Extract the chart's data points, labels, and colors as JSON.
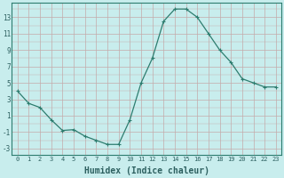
{
  "x": [
    0,
    1,
    2,
    3,
    4,
    5,
    6,
    7,
    8,
    9,
    10,
    11,
    12,
    13,
    14,
    15,
    16,
    17,
    18,
    19,
    20,
    21,
    22,
    23
  ],
  "y": [
    4,
    2.5,
    2,
    0.5,
    -0.8,
    -0.7,
    -1.5,
    -2.0,
    -2.5,
    -2.5,
    0.5,
    5,
    8,
    12.5,
    14,
    14,
    13,
    11,
    9,
    7.5,
    5.5,
    5,
    4.5,
    4.5
  ],
  "line_color": "#2d7d6f",
  "marker": "+",
  "marker_size": 3,
  "marker_edge_width": 0.8,
  "bg_color": "#c8eded",
  "grid_color_major": "#c4aaaa",
  "xlabel": "Humidex (Indice chaleur)",
  "xlabel_fontsize": 7,
  "tick_color": "#2d6060",
  "tick_fontsize": 5,
  "ylabel_ticks": [
    -3,
    -1,
    1,
    3,
    5,
    7,
    9,
    11,
    13
  ],
  "xlim": [
    -0.5,
    23.5
  ],
  "ylim": [
    -3.8,
    14.8
  ],
  "line_width": 0.9
}
